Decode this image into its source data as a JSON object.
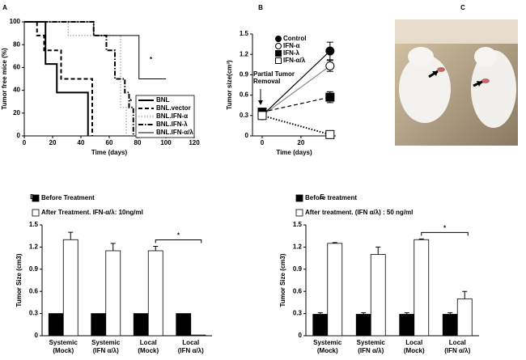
{
  "chart_data": [
    {
      "type": "step",
      "label": "A",
      "xlabel": "Time (days)",
      "ylabel": "Tumor free mice (%)",
      "xlim": [
        0,
        120
      ],
      "xticks": [
        0,
        20,
        40,
        60,
        80,
        100,
        120
      ],
      "ylim": [
        0,
        100
      ],
      "yticks": [
        0,
        20,
        40,
        60,
        80,
        100
      ],
      "legend": "lower right",
      "annotations": [
        "*",
        "*"
      ],
      "series": [
        {
          "name": "BNL",
          "color": "#000000",
          "line_style": "solid",
          "x": [
            0,
            15,
            23,
            45
          ],
          "values": [
            100,
            63,
            38,
            0
          ]
        },
        {
          "name": "BNL.vector",
          "color": "#000000",
          "line_style": "dashed",
          "x": [
            0,
            9,
            14,
            26,
            48
          ],
          "values": [
            100,
            88,
            75,
            50,
            0
          ]
        },
        {
          "name": "BNL.IFN-α",
          "color": "#888888",
          "line_style": "dotted",
          "x": [
            0,
            31,
            68,
            72
          ],
          "values": [
            100,
            88,
            25,
            0
          ]
        },
        {
          "name": "BNL.IFN-λ",
          "color": "#000000",
          "line_style": "dashdot",
          "x": [
            0,
            49,
            58,
            64,
            71,
            74,
            77
          ],
          "values": [
            100,
            88,
            75,
            50,
            38,
            25,
            0
          ]
        },
        {
          "name": "BNL.IFN-α/λ",
          "color": "#000000",
          "line_style": "solid",
          "x": [
            0,
            49,
            81,
            100
          ],
          "values": [
            100,
            88,
            50,
            50
          ]
        }
      ]
    },
    {
      "type": "line",
      "label": "B",
      "xlabel": "Time (days)",
      "ylabel": "Tumor size(cm³)",
      "xlim": [
        -5,
        38
      ],
      "xticks": [
        0,
        20
      ],
      "ylim": [
        0,
        1.5
      ],
      "yticks": [
        0,
        0.3,
        0.6,
        0.9,
        1.2,
        1.5
      ],
      "legend": "upper right",
      "annotations": [
        "Partial Tumor Removal"
      ],
      "series": [
        {
          "name": "Control",
          "marker": "circle",
          "filled": true,
          "color": "#000000",
          "line_style": "solid",
          "x": [
            0,
            35
          ],
          "values": [
            0.3,
            1.25
          ],
          "errors": [
            null,
            0.13
          ]
        },
        {
          "name": "IFN-α",
          "marker": "circle",
          "filled": false,
          "color": "#888888",
          "line_style": "solid",
          "x": [
            0,
            35
          ],
          "values": [
            0.3,
            1.03
          ],
          "errors": [
            null,
            0.08
          ]
        },
        {
          "name": "IFN-λ",
          "marker": "square",
          "filled": true,
          "color": "#000000",
          "line_style": "dashed",
          "x": [
            0,
            35
          ],
          "values": [
            0.35,
            0.57
          ],
          "errors": [
            null,
            0.08
          ]
        },
        {
          "name": "IFN-α/λ",
          "marker": "square",
          "filled": false,
          "color": "#000000",
          "line_style": "dotted",
          "x": [
            0,
            35
          ],
          "values": [
            0.3,
            0.02
          ],
          "errors": [
            null,
            null
          ]
        }
      ]
    },
    {
      "type": "image",
      "label": "C"
    },
    {
      "type": "bar",
      "label": "D",
      "ylabel": "Tumor Size (cm3)",
      "categories": [
        "Systemic (Mock)",
        "Systemic (IFN α/λ)",
        "Local (Mock)",
        "Local (IFN α/λ)"
      ],
      "ylim": [
        0,
        1.5
      ],
      "yticks": [
        0,
        0.3,
        0.6,
        0.9,
        1.2,
        1.5
      ],
      "legend": "upper left",
      "annotations": [
        "*"
      ],
      "series": [
        {
          "name": "Before Treatment",
          "color": "#000000",
          "values": [
            0.3,
            0.3,
            0.3,
            0.3
          ],
          "errors": [
            null,
            null,
            null,
            null
          ]
        },
        {
          "name": "After Treatment. IFN-α/λ: 10ng/ml",
          "color": "#ffffff",
          "values": [
            1.3,
            1.15,
            1.15,
            0.01
          ],
          "errors": [
            0.1,
            0.1,
            0.06,
            null
          ]
        }
      ]
    },
    {
      "type": "bar",
      "label": "E",
      "ylabel": "Tumor Size (cm3)",
      "categories": [
        "Systemic (Mock)",
        "Systemic (IFN α/λ)",
        "Local (Mock)",
        "Local (IFN α/λ)"
      ],
      "ylim": [
        0,
        1.5
      ],
      "yticks": [
        0,
        0.3,
        0.6,
        0.9,
        1.2,
        1.5
      ],
      "legend": "upper left",
      "annotations": [
        "*"
      ],
      "series": [
        {
          "name": "Before treatment",
          "color": "#000000",
          "values": [
            0.29,
            0.29,
            0.29,
            0.29
          ],
          "errors": [
            0.02,
            0.02,
            0.02,
            0.02
          ]
        },
        {
          "name": "After treatment. (IFN α/λ) : 50 ng/ml",
          "color": "#ffffff",
          "values": [
            1.25,
            1.1,
            1.3,
            0.5
          ],
          "errors": [
            0.01,
            0.1,
            0.01,
            0.1
          ]
        }
      ]
    }
  ]
}
